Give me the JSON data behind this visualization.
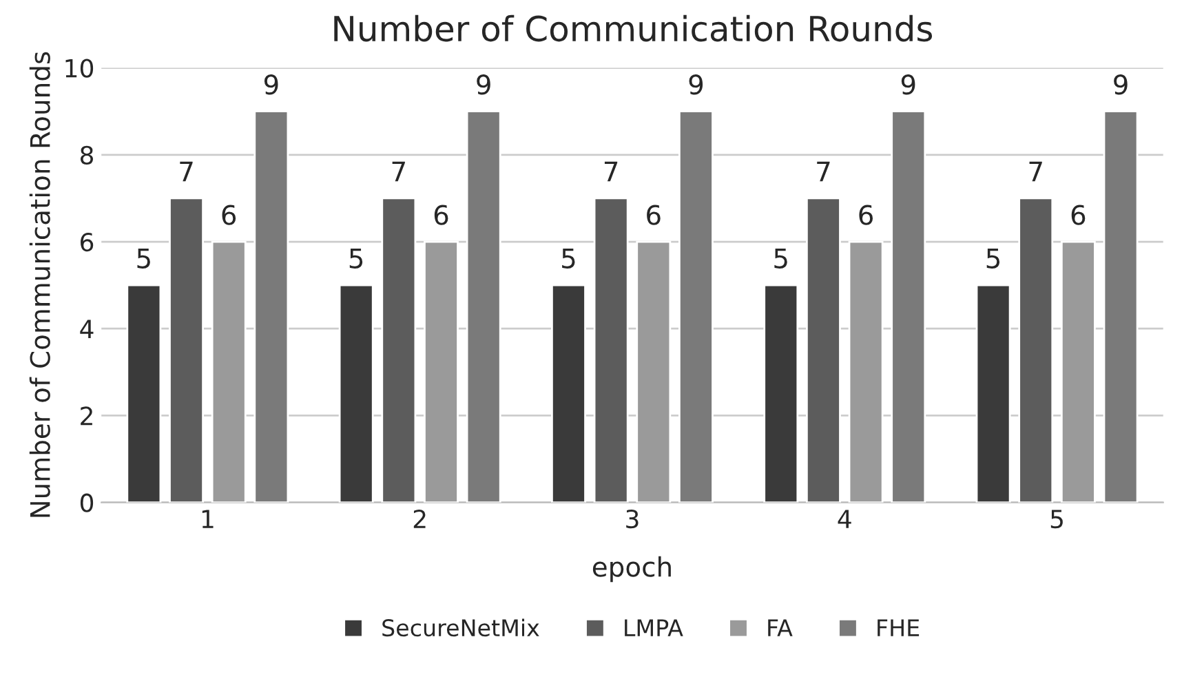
{
  "chart_data": {
    "type": "bar",
    "title": "Number of Communication Rounds",
    "xlabel": "epoch",
    "ylabel": "Number of Communication Rounds",
    "categories": [
      "1",
      "2",
      "3",
      "4",
      "5"
    ],
    "series": [
      {
        "name": "SecureNetMix",
        "color": "#3a3a3a",
        "values": [
          5,
          5,
          5,
          5,
          5
        ]
      },
      {
        "name": "LMPA",
        "color": "#5c5c5c",
        "values": [
          7,
          7,
          7,
          7,
          7
        ]
      },
      {
        "name": "FA",
        "color": "#9a9a9a",
        "values": [
          6,
          6,
          6,
          6,
          6
        ]
      },
      {
        "name": "FHE",
        "color": "#7a7a7a",
        "values": [
          9,
          9,
          9,
          9,
          9
        ]
      }
    ],
    "ylim": [
      0,
      10
    ],
    "yticks": [
      0,
      2,
      4,
      6,
      8,
      10
    ],
    "grid": "y",
    "legend": "bottom",
    "data_labels": true
  }
}
